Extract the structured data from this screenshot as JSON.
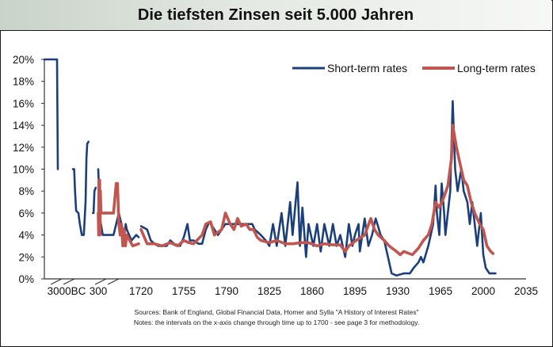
{
  "title": "Die tiefsten Zinsen seit 5.000 Jahren",
  "sources": "Sources: Bank of England, Global Financial Data, Homer and Sylla \"A History of Interest Rates\"",
  "notes": "Notes: the intervals on the x-axis change through time up to 1700 - see page 3 for methodology.",
  "chart_data": {
    "type": "line",
    "title": "Die tiefsten Zinsen seit 5.000 Jahren",
    "xlabel": "",
    "ylabel": "",
    "ylim": [
      0,
      20
    ],
    "y_ticks": [
      "0%",
      "2%",
      "4%",
      "6%",
      "8%",
      "10%",
      "12%",
      "14%",
      "16%",
      "18%",
      "20%"
    ],
    "y_tick_values": [
      0,
      2,
      4,
      6,
      8,
      10,
      12,
      14,
      16,
      18,
      20
    ],
    "x_ticks": [
      "3000BC",
      "300",
      "1720",
      "1755",
      "1790",
      "1825",
      "1860",
      "1895",
      "1930",
      "1965",
      "2000",
      "2035"
    ],
    "x_tick_values": [
      -3000,
      300,
      1720,
      1755,
      1790,
      1825,
      1860,
      1895,
      1930,
      1965,
      2000,
      2035
    ],
    "x_axis_breaks": [
      "between 3000BC and 300",
      "between 300 and 1720"
    ],
    "grid": false,
    "legend_position": "top-right",
    "colors": {
      "short": "#1b3f7a",
      "long": "#c0564f"
    },
    "series": [
      {
        "name": "Short-term rates",
        "segments": [
          [
            [
              -3500,
              20
            ],
            [
              -1800,
              20
            ],
            [
              -1780,
              10
            ]
          ],
          [
            [
              -445,
              10
            ],
            [
              -400,
              10
            ],
            [
              -370,
              8
            ],
            [
              -330,
              6.2
            ],
            [
              -250,
              6
            ],
            [
              -200,
              5
            ],
            [
              -130,
              4
            ],
            [
              -60,
              4
            ],
            [
              0,
              7
            ],
            [
              20,
              11
            ],
            [
              40,
              12.3
            ],
            [
              70,
              12.5
            ]
          ],
          [
            [
              175,
              6
            ],
            [
              190,
              6
            ],
            [
              210,
              8
            ],
            [
              240,
              8.3
            ]
          ],
          [
            [
              300,
              10
            ],
            [
              320,
              9
            ],
            [
              360,
              6
            ],
            [
              450,
              5
            ],
            [
              550,
              4
            ],
            [
              900,
              4
            ],
            [
              1100,
              4
            ],
            [
              1300,
              6
            ],
            [
              1400,
              5
            ],
            [
              1500,
              4
            ],
            [
              1560,
              5
            ],
            [
              1600,
              4.5
            ],
            [
              1640,
              3.5
            ],
            [
              1680,
              4
            ],
            [
              1700,
              3.8
            ]
          ],
          [
            [
              1720,
              4.8
            ],
            [
              1725,
              4.5
            ],
            [
              1728,
              3.5
            ],
            [
              1731,
              3.2
            ],
            [
              1734,
              3
            ],
            [
              1741,
              3
            ],
            [
              1744,
              3.5
            ],
            [
              1747,
              3.2
            ],
            [
              1752,
              3
            ],
            [
              1755,
              3.8
            ],
            [
              1758,
              5
            ],
            [
              1760,
              3.5
            ],
            [
              1763,
              3.5
            ],
            [
              1767,
              3.2
            ],
            [
              1770,
              3.2
            ],
            [
              1773,
              4.5
            ],
            [
              1776,
              5.2
            ],
            [
              1780,
              4.5
            ],
            [
              1783,
              4
            ],
            [
              1786,
              4.5
            ],
            [
              1789,
              5
            ],
            [
              1793,
              5
            ],
            [
              1799,
              5
            ],
            [
              1806,
              5
            ],
            [
              1811,
              5
            ],
            [
              1813,
              4.5
            ],
            [
              1818,
              4
            ],
            [
              1822,
              3.5
            ],
            [
              1825,
              3
            ],
            [
              1828,
              5
            ],
            [
              1831,
              3
            ],
            [
              1835,
              6
            ],
            [
              1838,
              3
            ],
            [
              1842,
              7
            ],
            [
              1844,
              4
            ],
            [
              1848,
              8.8
            ],
            [
              1850,
              3
            ],
            [
              1852,
              6.5
            ],
            [
              1855,
              2
            ],
            [
              1857,
              5
            ],
            [
              1861,
              3
            ],
            [
              1864,
              5
            ],
            [
              1867,
              2.5
            ],
            [
              1870,
              5
            ],
            [
              1874,
              3
            ],
            [
              1877,
              5
            ],
            [
              1880,
              3
            ],
            [
              1883,
              4
            ],
            [
              1887,
              2
            ],
            [
              1890,
              5
            ],
            [
              1893,
              3
            ],
            [
              1895,
              4
            ],
            [
              1898,
              5
            ],
            [
              1899,
              2.5
            ],
            [
              1903,
              5.5
            ],
            [
              1906,
              3
            ],
            [
              1909,
              4
            ],
            [
              1912,
              5.5
            ],
            [
              1916,
              4
            ],
            [
              1919,
              3.5
            ],
            [
              1922,
              2
            ],
            [
              1925,
              0.5
            ],
            [
              1929,
              0.3
            ],
            [
              1935,
              0.5
            ],
            [
              1940,
              0.5
            ],
            [
              1943,
              1
            ],
            [
              1947,
              1.5
            ],
            [
              1949,
              2
            ],
            [
              1951,
              1.5
            ],
            [
              1955,
              3
            ],
            [
              1957,
              4
            ],
            [
              1959,
              5
            ],
            [
              1961,
              8.5
            ],
            [
              1962,
              6
            ],
            [
              1964,
              4
            ],
            [
              1966,
              8.7
            ],
            [
              1968,
              6
            ],
            [
              1969,
              4
            ],
            [
              1973,
              8
            ],
            [
              1975,
              16.2
            ],
            [
              1977,
              10
            ],
            [
              1979,
              8
            ],
            [
              1982,
              10
            ],
            [
              1984,
              8
            ],
            [
              1987,
              7
            ],
            [
              1989,
              5
            ],
            [
              1991,
              7
            ],
            [
              1993,
              5
            ],
            [
              1995,
              3
            ],
            [
              1998,
              6
            ],
            [
              2000,
              2.2
            ],
            [
              2002,
              1
            ],
            [
              2005,
              0.5
            ],
            [
              2010,
              0.5
            ]
          ]
        ]
      },
      {
        "name": "Long-term rates",
        "segments": [
          [
            [
              300,
              6
            ],
            [
              320,
              4
            ],
            [
              340,
              9
            ],
            [
              360,
              4
            ],
            [
              380,
              9
            ],
            [
              400,
              4
            ],
            [
              420,
              8
            ],
            [
              450,
              6
            ],
            [
              700,
              6
            ],
            [
              1000,
              6
            ],
            [
              1100,
              6
            ],
            [
              1200,
              8.7
            ],
            [
              1250,
              8.7
            ],
            [
              1300,
              5
            ],
            [
              1350,
              4
            ],
            [
              1400,
              5
            ],
            [
              1450,
              3
            ],
            [
              1500,
              4.5
            ],
            [
              1550,
              3
            ],
            [
              1600,
              4
            ],
            [
              1650,
              3
            ],
            [
              1700,
              3.2
            ]
          ],
          [
            [
              1720,
              4.5
            ],
            [
              1725,
              3.2
            ],
            [
              1731,
              3.2
            ],
            [
              1737,
              3
            ],
            [
              1744,
              3.3
            ],
            [
              1750,
              3
            ],
            [
              1755,
              3.5
            ],
            [
              1759,
              3.3
            ],
            [
              1763,
              3.2
            ],
            [
              1770,
              4
            ],
            [
              1773,
              5
            ],
            [
              1777,
              5.2
            ],
            [
              1780,
              4
            ],
            [
              1786,
              4.5
            ],
            [
              1789,
              6
            ],
            [
              1793,
              5
            ],
            [
              1796,
              4.5
            ],
            [
              1799,
              5.5
            ],
            [
              1802,
              4.8
            ],
            [
              1806,
              5
            ],
            [
              1809,
              4.5
            ],
            [
              1812,
              4.5
            ],
            [
              1815,
              3.8
            ],
            [
              1818,
              3.5
            ],
            [
              1825,
              3.3
            ],
            [
              1831,
              3.5
            ],
            [
              1838,
              3.2
            ],
            [
              1844,
              3.2
            ],
            [
              1851,
              3.3
            ],
            [
              1857,
              3.3
            ],
            [
              1864,
              3
            ],
            [
              1870,
              3.2
            ],
            [
              1877,
              3.1
            ],
            [
              1883,
              3.1
            ],
            [
              1887,
              2.5
            ],
            [
              1890,
              3
            ],
            [
              1896,
              3.5
            ],
            [
              1903,
              4
            ],
            [
              1908,
              5.5
            ],
            [
              1911,
              4.5
            ],
            [
              1914,
              4
            ],
            [
              1919,
              3.5
            ],
            [
              1923,
              3
            ],
            [
              1929,
              2.5
            ],
            [
              1932,
              2.2
            ],
            [
              1935,
              2.5
            ],
            [
              1942,
              2.2
            ],
            [
              1947,
              2.8
            ],
            [
              1951,
              3.5
            ],
            [
              1955,
              4
            ],
            [
              1958,
              5
            ],
            [
              1961,
              7
            ],
            [
              1964,
              6.5
            ],
            [
              1968,
              7.5
            ],
            [
              1971,
              8.5
            ],
            [
              1974,
              11
            ],
            [
              1975,
              14
            ],
            [
              1978,
              12
            ],
            [
              1980,
              11
            ],
            [
              1984,
              9
            ],
            [
              1987,
              8.5
            ],
            [
              1990,
              7
            ],
            [
              1993,
              6
            ],
            [
              1997,
              5
            ],
            [
              2000,
              4.5
            ],
            [
              2003,
              3
            ],
            [
              2006,
              2.5
            ],
            [
              2008,
              2.3
            ]
          ]
        ]
      }
    ]
  }
}
